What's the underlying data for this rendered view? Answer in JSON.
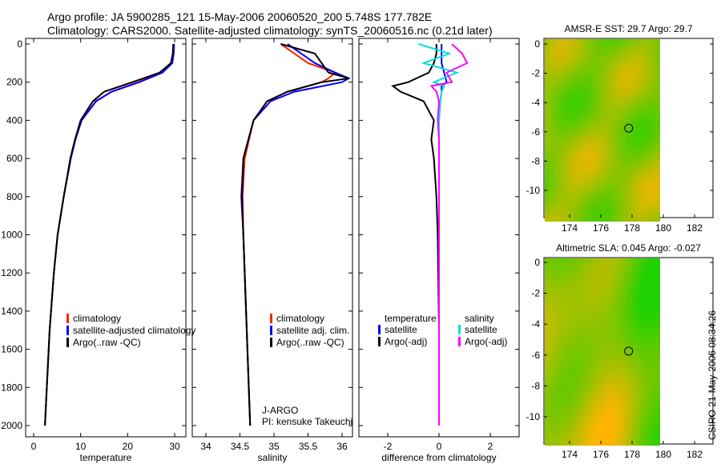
{
  "title_line1": "Argo profile: JA 5900285_121 15-May-2006 20060520_200 5.748S 177.782E",
  "title_line2": "Climatology: CARS2000. Satellite-adjusted climatology: synTS_20060516.nc (0.21d later)",
  "side_label": "CSIRO 21-May-2006 08:34:26",
  "colors": {
    "climatology": "#ff2000",
    "satellite": "#0000ff",
    "argo": "#000000",
    "sal_sat": "#00e0e0",
    "sal_argo": "#ff00ff"
  },
  "chart_data": [
    {
      "type": "line",
      "xlabel": "temperature",
      "xlim": [
        -1.5,
        32
      ],
      "ylim": [
        2060,
        -30
      ],
      "xticks": [
        "0",
        "10",
        "20",
        "30"
      ],
      "xtick_vals": [
        0,
        10,
        20,
        30
      ],
      "yticks": [
        "0",
        "200",
        "400",
        "600",
        "800",
        "1000",
        "1200",
        "1400",
        "1600",
        "1800",
        "2000"
      ],
      "legend": [
        "climatology",
        "satellite-adjusted climatology",
        "Argo(..raw -QC)"
      ],
      "depth": [
        0,
        50,
        100,
        150,
        200,
        250,
        300,
        400,
        500,
        600,
        800,
        1000,
        1200,
        1500,
        2000
      ],
      "series": [
        {
          "name": "climatology",
          "values": [
            29.8,
            29.7,
            29.4,
            27.2,
            22.2,
            16.5,
            13.2,
            10.2,
            8.9,
            7.9,
            6.4,
            5.1,
            4.3,
            3.4,
            2.4
          ]
        },
        {
          "name": "satellite-adjusted climatology",
          "values": [
            29.9,
            29.8,
            29.5,
            27.4,
            22.5,
            16.6,
            13.3,
            10.2,
            8.9,
            7.9,
            6.4,
            5.1,
            4.3,
            3.4,
            2.4
          ]
        },
        {
          "name": "Argo(..raw -QC)",
          "values": [
            29.7,
            29.6,
            29.2,
            26.8,
            21.0,
            15.0,
            12.6,
            10.0,
            8.8,
            7.8,
            6.4,
            5.1,
            4.3,
            3.4,
            2.4
          ]
        }
      ]
    },
    {
      "type": "line",
      "xlabel": "salinity",
      "xlim": [
        33.8,
        36.1
      ],
      "ylim": [
        2060,
        -30
      ],
      "xticks": [
        "34",
        "34.5",
        "35",
        "35.5",
        "36"
      ],
      "xtick_vals": [
        34,
        34.5,
        35,
        35.5,
        36
      ],
      "legend": [
        "climatology",
        "satellite adj. clim.",
        "Argo(..raw -QC)"
      ],
      "annotations": [
        "J-ARGO",
        "PI: kensuke Takeuchi"
      ],
      "depth": [
        0,
        50,
        100,
        150,
        180,
        200,
        250,
        300,
        400,
        600,
        800,
        1000,
        1500,
        2000
      ],
      "series": [
        {
          "name": "climatology",
          "values": [
            35.1,
            35.3,
            35.5,
            35.9,
            35.8,
            35.7,
            35.2,
            34.9,
            34.7,
            34.57,
            34.54,
            34.55,
            34.6,
            34.65
          ]
        },
        {
          "name": "satellite adj. clim.",
          "values": [
            35.2,
            35.4,
            35.6,
            35.9,
            36.1,
            36.0,
            35.3,
            34.95,
            34.7,
            34.55,
            34.52,
            34.55,
            34.6,
            34.65
          ]
        },
        {
          "name": "Argo(..raw -QC)",
          "values": [
            35.1,
            35.6,
            35.7,
            35.8,
            36.1,
            35.7,
            35.2,
            34.9,
            34.7,
            34.55,
            34.53,
            34.55,
            34.6,
            34.65
          ]
        }
      ]
    },
    {
      "type": "line",
      "xlabel": "difference from climatology",
      "xlim": [
        -3.1,
        3.1
      ],
      "ylim": [
        2060,
        -30
      ],
      "xticks": [
        "-2",
        "0",
        "2"
      ],
      "xtick_vals": [
        -2,
        0,
        2
      ],
      "legend_headers": [
        "temperature",
        "salinity"
      ],
      "legend": [
        "satellite",
        "Argo(-adj)",
        "satellite",
        "Argo(-adj)"
      ],
      "depth": [
        0,
        50,
        100,
        150,
        200,
        220,
        250,
        300,
        400,
        500,
        600,
        800,
        1000,
        1500,
        2000
      ],
      "series": [
        {
          "name": "temperature satellite",
          "values": [
            0.1,
            0.1,
            0.1,
            0.2,
            0.3,
            0.1,
            0.1,
            0.05,
            0,
            0,
            0,
            0,
            0,
            0,
            0
          ]
        },
        {
          "name": "temperature Argo(-adj)",
          "values": [
            -0.1,
            -0.1,
            -0.2,
            -0.4,
            -1.2,
            -1.8,
            -1.5,
            -0.6,
            -0.2,
            -0.3,
            -0.2,
            -0.1,
            -0.05,
            0,
            0
          ]
        },
        {
          "name": "salinity satellite",
          "values": [
            -0.8,
            0.4,
            -0.6,
            0.7,
            -0.2,
            0.2,
            0.1,
            0.05,
            0,
            0,
            0,
            0,
            0,
            0,
            0
          ]
        },
        {
          "name": "salinity Argo(-adj)",
          "values": [
            0.5,
            0.9,
            1.1,
            0.3,
            0.5,
            -0.3,
            -0.1,
            0,
            -0.05,
            0,
            0,
            0,
            0,
            0,
            0
          ]
        }
      ]
    },
    {
      "type": "heatmap",
      "title": "AMSR-E SST: 29.7 Argo: 29.7",
      "xticks": [
        "174",
        "176",
        "178",
        "180",
        "182"
      ],
      "yticks": [
        "0",
        "-2",
        "-4",
        "-6",
        "-8",
        "-10"
      ],
      "float_position": [
        177.782,
        -5.748
      ]
    },
    {
      "type": "heatmap",
      "title": "Altimetric SLA: 0.045 Argo: -0.027",
      "xticks": [
        "174",
        "176",
        "178",
        "180",
        "182"
      ],
      "yticks": [
        "0",
        "-2",
        "-4",
        "-6",
        "-8",
        "-10"
      ],
      "float_position": [
        177.782,
        -5.748
      ]
    }
  ]
}
